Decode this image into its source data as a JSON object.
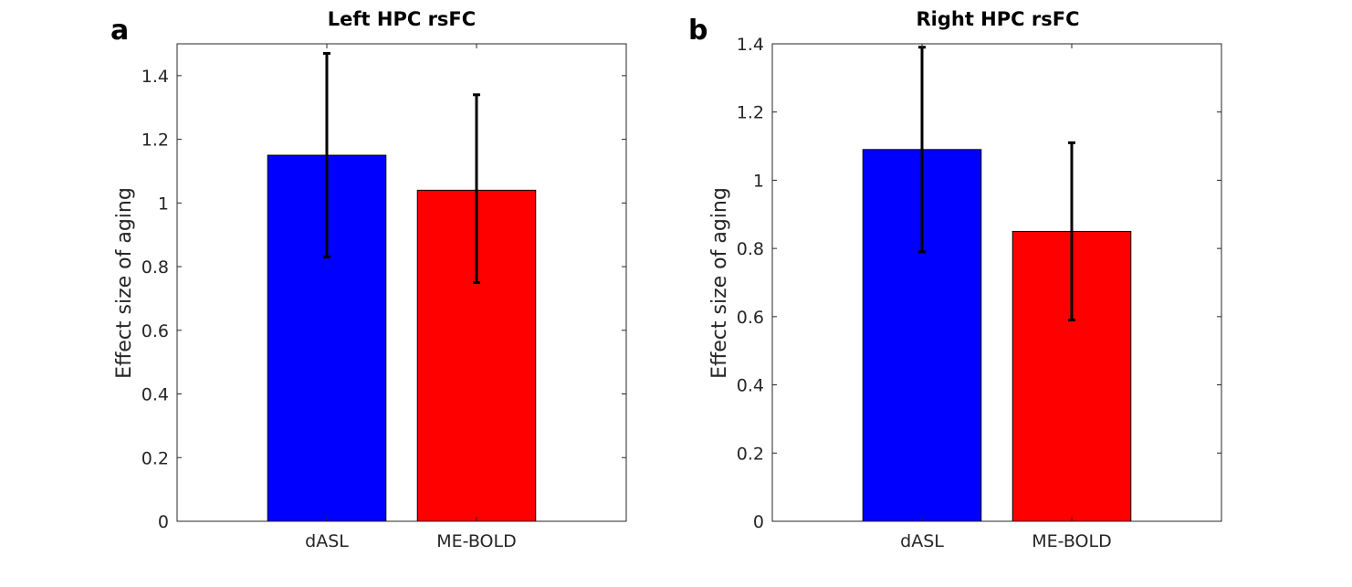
{
  "figure": {
    "background": "#ffffff"
  },
  "chart_data": [
    {
      "type": "bar",
      "panel_label": "a",
      "title": "Left HPC rsFC",
      "xlabel": "",
      "ylabel": "Effect size of aging",
      "categories": [
        "dASL",
        "ME-BOLD"
      ],
      "values": [
        1.15,
        1.04
      ],
      "error_low": [
        0.83,
        0.75
      ],
      "error_high": [
        1.47,
        1.34
      ],
      "colors": [
        "#0000ff",
        "#ff0000"
      ],
      "ylim": [
        0,
        1.5
      ],
      "yticks": [
        0,
        0.2,
        0.4,
        0.6,
        0.8,
        1,
        1.2,
        1.4
      ],
      "ytick_labels": [
        "0",
        "0.2",
        "0.4",
        "0.6",
        "0.8",
        "1",
        "1.2",
        "1.4"
      ],
      "xlim": [
        0,
        3
      ],
      "grid": false
    },
    {
      "type": "bar",
      "panel_label": "b",
      "title": "Right HPC rsFC",
      "xlabel": "",
      "ylabel": "Effect size of aging",
      "categories": [
        "dASL",
        "ME-BOLD"
      ],
      "values": [
        1.09,
        0.85
      ],
      "error_low": [
        0.79,
        0.59
      ],
      "error_high": [
        1.39,
        1.11
      ],
      "colors": [
        "#0000ff",
        "#ff0000"
      ],
      "ylim": [
        0,
        1.4
      ],
      "yticks": [
        0,
        0.2,
        0.4,
        0.6,
        0.8,
        1,
        1.2,
        1.4
      ],
      "ytick_labels": [
        "0",
        "0.2",
        "0.4",
        "0.6",
        "0.8",
        "1",
        "1.2",
        "1.4"
      ],
      "xlim": [
        0,
        3
      ],
      "grid": false
    }
  ]
}
